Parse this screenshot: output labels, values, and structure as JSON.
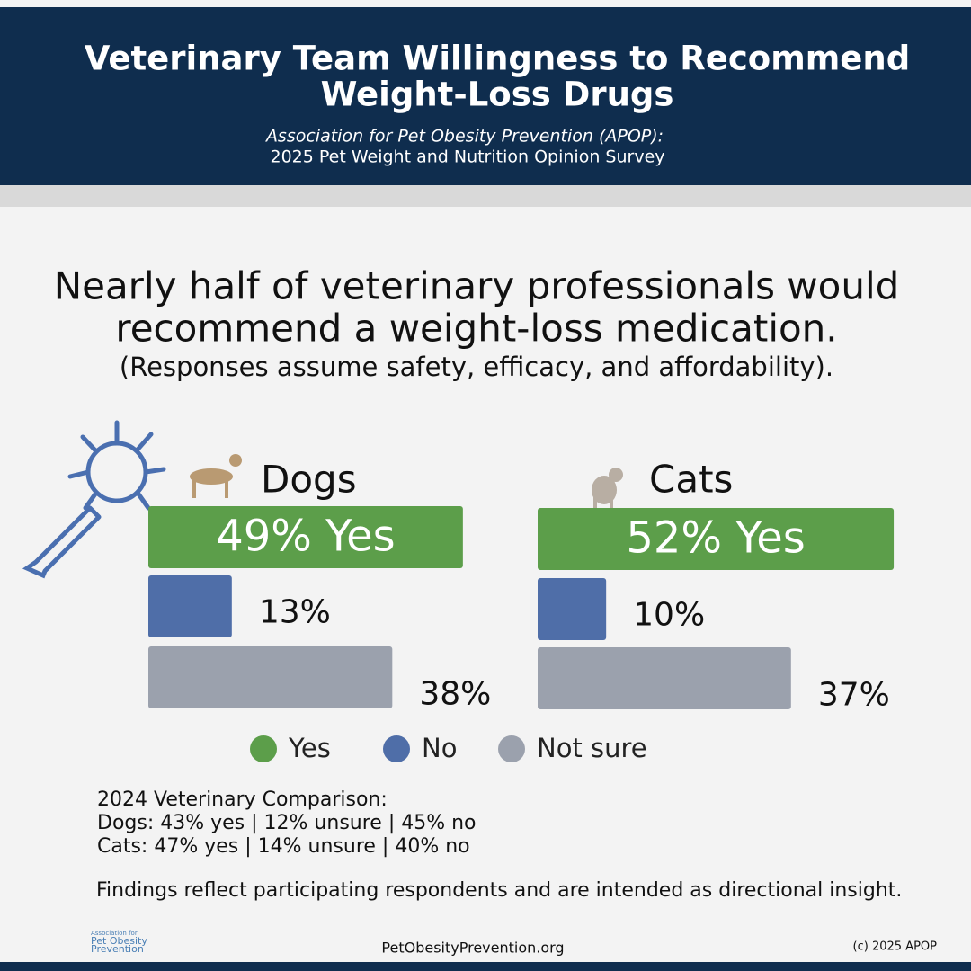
{
  "header": {
    "title_lines": [
      "Veterinary Team Willingness to Recommend",
      "Weight-Loss Drugs"
    ],
    "source_lines": [
      "Association for Pet Obesity Prevention (APOP):",
      "2025 Pet Weight and Nutrition Opinion Survey"
    ]
  },
  "headline_lines": [
    "Nearly half of veterinary professionals would",
    "recommend a weight-loss medication."
  ],
  "subheadline": "(Responses assume safety, efficacy, and affordability).",
  "legend": {
    "items": [
      "Yes",
      "No",
      "Not sure"
    ],
    "colors": [
      "#5c9e4a",
      "#4f6ea8",
      "#9ba1ad"
    ]
  },
  "chart_data": [
    {
      "type": "hbar",
      "title": "Dogs",
      "values": [
        49,
        13,
        38
      ],
      "value_labels": [
        "49% Yes",
        "13%",
        "38%"
      ],
      "xlim": [
        0,
        50
      ]
    },
    {
      "type": "hbar",
      "title": "Cats",
      "values": [
        52,
        10,
        37
      ],
      "value_labels": [
        "52% Yes",
        "10%",
        "37%"
      ],
      "xlim": [
        0,
        60
      ]
    }
  ],
  "comparison_lines": [
    "2024 Veterinary Comparison:",
    "Dogs: 43% yes | 12% unsure | 45% no",
    "Cats: 47% yes | 14% unsure | 40% no"
  ],
  "findings": "Findings reflect participating respondents and are intended as directional insight.",
  "footer": {
    "logo_lines": [
      "Association for",
      "Pet Obesity",
      "Prevention"
    ],
    "url": "PetObesityPrevention.org",
    "copyright": "(c) 2025 APOP"
  }
}
